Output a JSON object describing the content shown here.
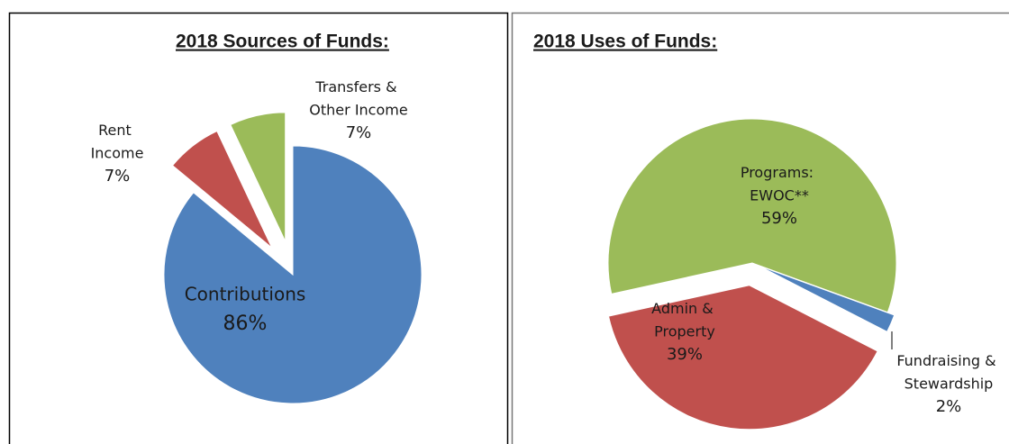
{
  "chart_data": [
    {
      "type": "pie",
      "title": "2018 Sources of Funds:",
      "categories": [
        "Contributions",
        "Rent Income",
        "Transfers & Other Income"
      ],
      "values": [
        86,
        7,
        7
      ],
      "value_labels": [
        "86%",
        "7%",
        "7%"
      ],
      "colors": [
        "#4f81bd",
        "#c0504d",
        "#9bbb59"
      ]
    },
    {
      "type": "pie",
      "title": "2018 Uses of Funds:",
      "categories": [
        "Fundraising & Stewardship",
        "Admin & Property",
        "Programs: EWOC**"
      ],
      "values": [
        2,
        39,
        59
      ],
      "value_labels": [
        "2%",
        "39%",
        "59%"
      ],
      "colors": [
        "#4f81bd",
        "#c0504d",
        "#9bbb59"
      ]
    }
  ]
}
